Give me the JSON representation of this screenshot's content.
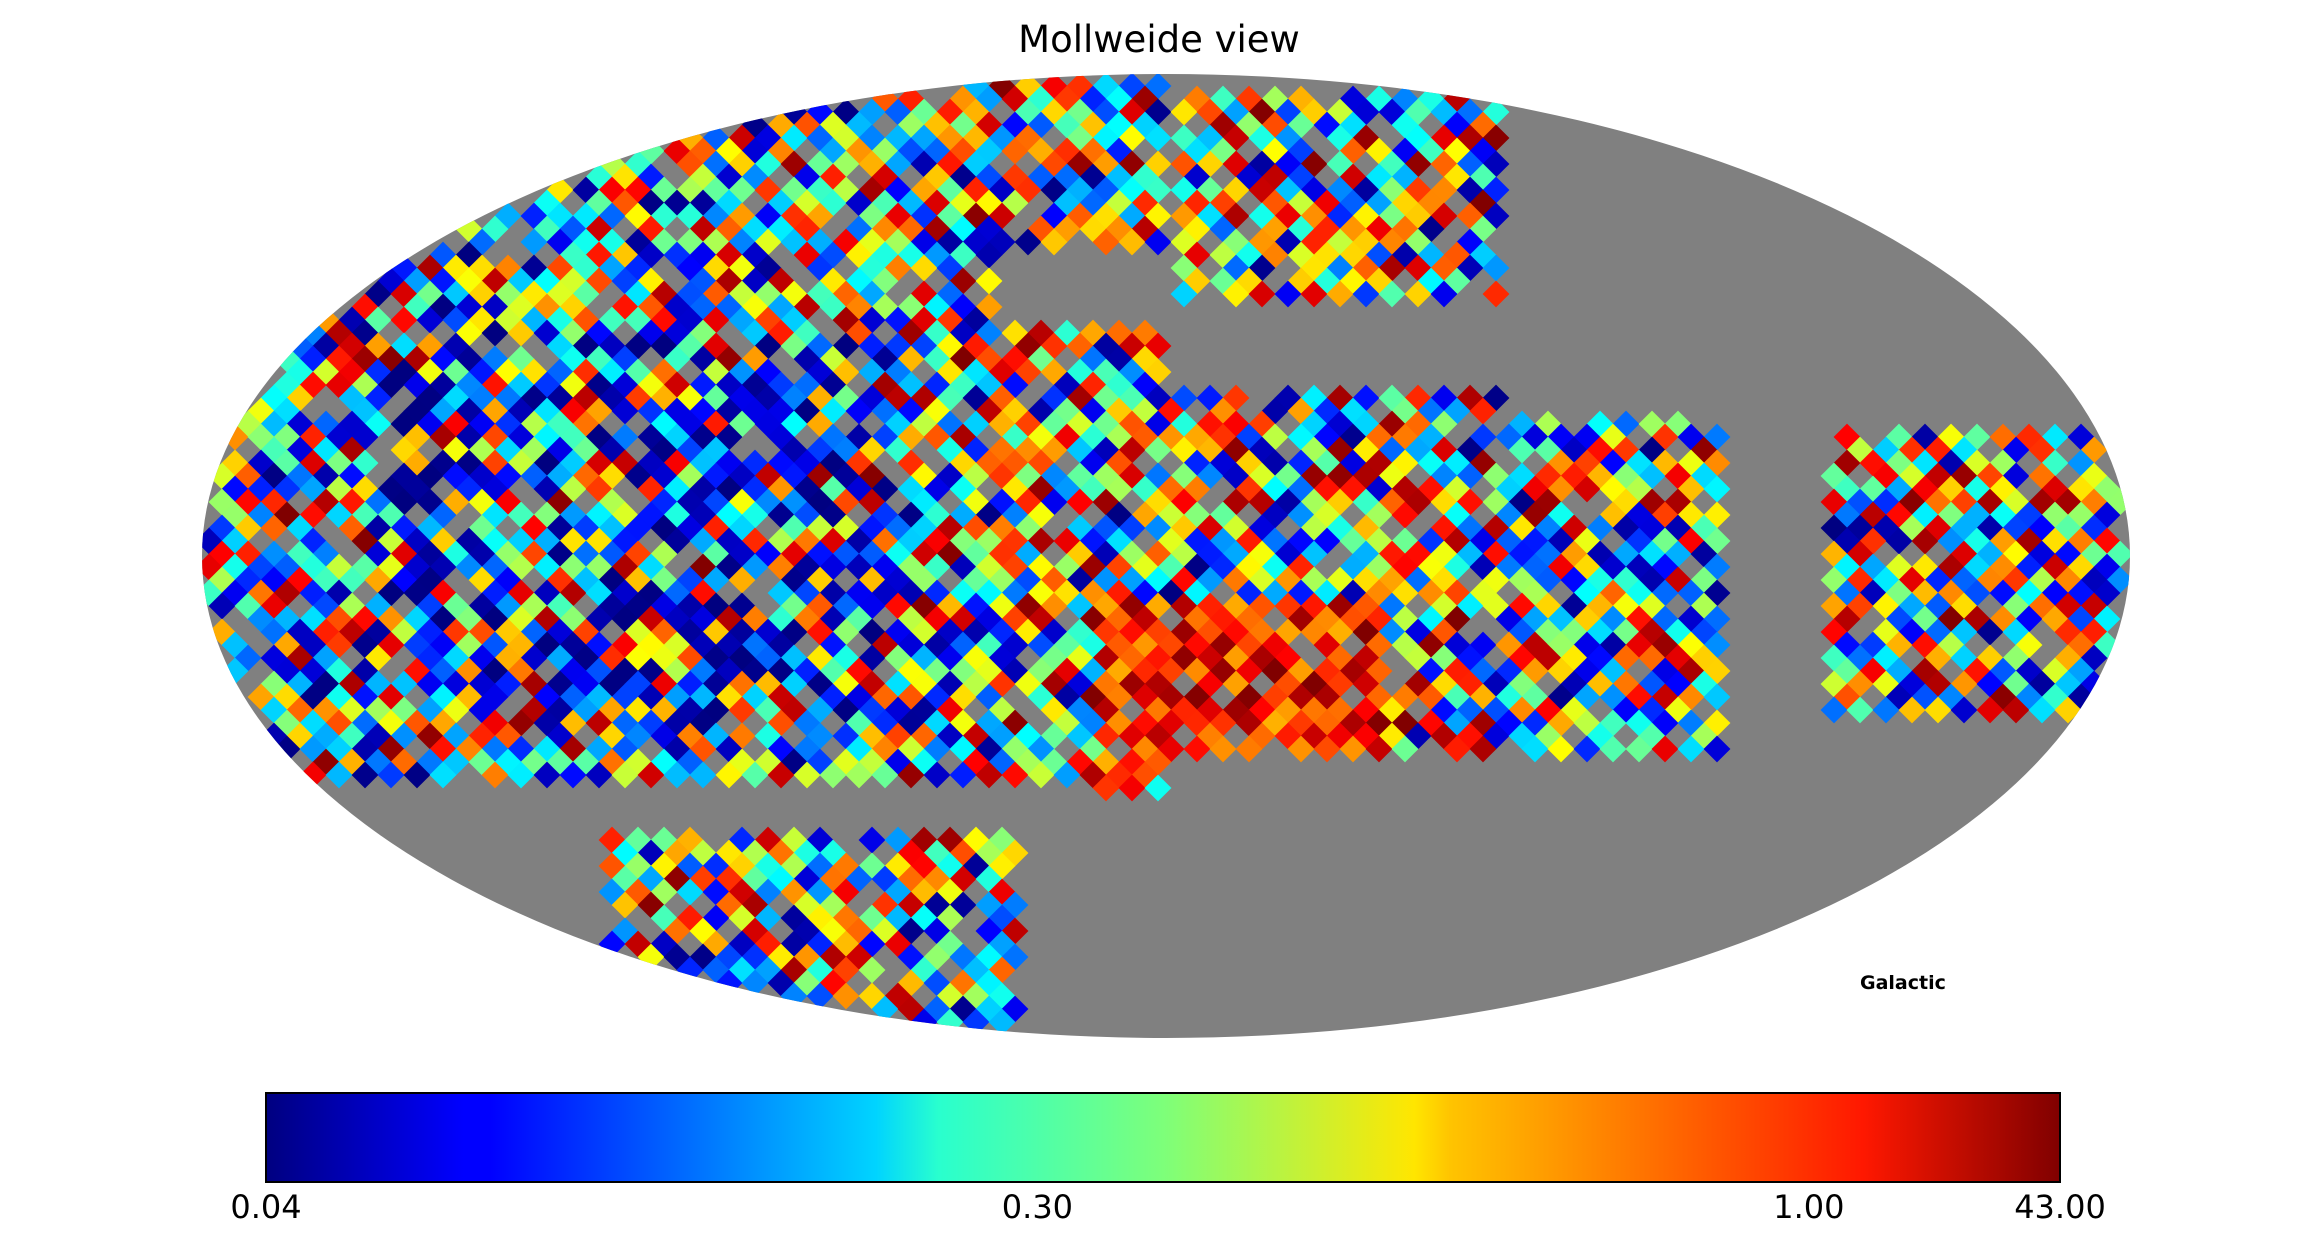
{
  "chart_data": {
    "type": "heatmap",
    "projection": "mollweide",
    "title": "Mollweide view",
    "coordinate_system": "Galactic",
    "colormap": "jet",
    "missing_color": "#808080",
    "colorbar": {
      "orientation": "horizontal",
      "min": 0.04,
      "max": 43.0,
      "ticks": [
        "0.04",
        "0.30",
        "1.00",
        "43.00"
      ],
      "tick_values": [
        0.04,
        0.3,
        1.0,
        43.0
      ]
    },
    "grid": false
  }
}
